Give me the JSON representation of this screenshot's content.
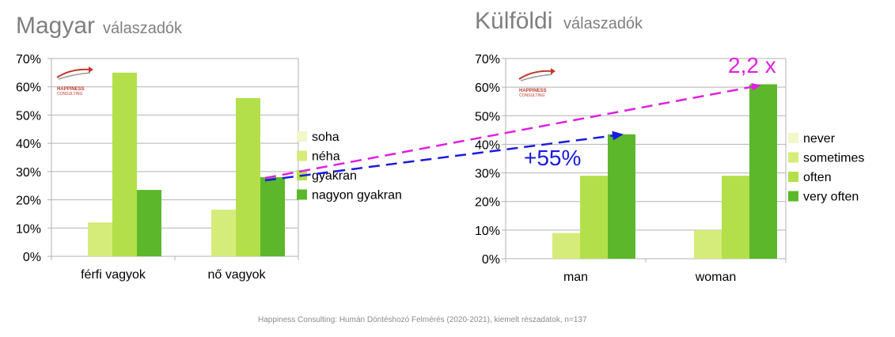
{
  "colors": {
    "series": [
      "#f3f7c9",
      "#d6ec7a",
      "#b3e04a",
      "#5cb82a"
    ],
    "title": "#7f7f7f",
    "grid": "#b3b3b3",
    "arrow_pink": "#e020e0",
    "arrow_blue": "#1a1ae0",
    "logo": "#c0392b"
  },
  "logo": {
    "line1": "HAPPINESS",
    "line2": "CONSULTING",
    "icon": "happiness-consulting-logo"
  },
  "annotations": {
    "pink_label": "2,2 x",
    "blue_label": "+55%"
  },
  "footnote": "Happiness Consulting: Humán Döntéshozó Felmérés (2020-2021), kiemelt részadatok, n=137",
  "chart_data": [
    {
      "type": "bar",
      "title": "Magyar",
      "subtitle": "válaszadók",
      "categories": [
        "férfi vagyok",
        "nő vagyok"
      ],
      "yticks": [
        "0%",
        "10%",
        "20%",
        "30%",
        "40%",
        "50%",
        "60%",
        "70%"
      ],
      "ylim": [
        0,
        70
      ],
      "legend_position": "right",
      "series": [
        {
          "name": "soha",
          "values": [
            0,
            0
          ]
        },
        {
          "name": "néha",
          "values": [
            12,
            16.5
          ]
        },
        {
          "name": "gyakran",
          "values": [
            65,
            56
          ]
        },
        {
          "name": "nagyon gyakran",
          "values": [
            23.5,
            28
          ]
        }
      ]
    },
    {
      "type": "bar",
      "title": "Külföldi",
      "subtitle": "válaszadók",
      "categories": [
        "man",
        "woman"
      ],
      "yticks": [
        "0%",
        "10%",
        "20%",
        "30%",
        "40%",
        "50%",
        "60%",
        "70%"
      ],
      "ylim": [
        0,
        70
      ],
      "legend_position": "right",
      "series": [
        {
          "name": "never",
          "values": [
            0,
            0
          ]
        },
        {
          "name": "sometimes",
          "values": [
            9,
            10
          ]
        },
        {
          "name": "often",
          "values": [
            29,
            29
          ]
        },
        {
          "name": "very often",
          "values": [
            43.5,
            61
          ]
        }
      ]
    }
  ]
}
